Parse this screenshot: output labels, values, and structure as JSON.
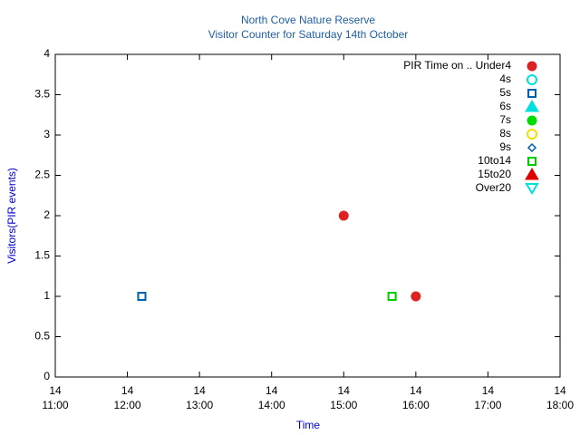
{
  "chart_data": {
    "type": "scatter",
    "title": "North Cove Nature Reserve",
    "subtitle": "Visitor Counter for Saturday 14th October",
    "x_label": "Time",
    "y_label": "Visitors(PIR events)",
    "xlim": [
      11,
      18
    ],
    "xticks": [
      {
        "value": 11,
        "label": [
          "14",
          "11:00"
        ]
      },
      {
        "value": 12,
        "label": [
          "14",
          "12:00"
        ]
      },
      {
        "value": 13,
        "label": [
          "14",
          "13:00"
        ]
      },
      {
        "value": 14,
        "label": [
          "14",
          "14:00"
        ]
      },
      {
        "value": 15,
        "label": [
          "14",
          "15:00"
        ]
      },
      {
        "value": 16,
        "label": [
          "14",
          "16:00"
        ]
      },
      {
        "value": 17,
        "label": [
          "14",
          "17:00"
        ]
      },
      {
        "value": 18,
        "label": [
          "14",
          "18:00"
        ]
      }
    ],
    "ylim": [
      0,
      4
    ],
    "yticks": [
      0,
      0.5,
      1,
      1.5,
      2,
      2.5,
      3,
      3.5,
      4
    ],
    "legend": "top-right",
    "series": [
      {
        "name": "PIR Time on .. Under4",
        "color": "#dd2222",
        "marker": "circle-filled",
        "x": [
          15,
          16
        ],
        "values": [
          2,
          1
        ]
      },
      {
        "name": "4s",
        "color": "#00e0e0",
        "marker": "circle-open",
        "x": [],
        "values": []
      },
      {
        "name": "5s",
        "color": "#0060ad",
        "marker": "square-open",
        "x": [
          12.2
        ],
        "values": [
          1
        ]
      },
      {
        "name": "6s",
        "color": "#00e0e0",
        "marker": "triangle-filled",
        "x": [],
        "values": []
      },
      {
        "name": "7s",
        "color": "#00dd00",
        "marker": "circle-filled",
        "x": [],
        "values": []
      },
      {
        "name": "8s",
        "color": "#f0e000",
        "marker": "circle-open",
        "x": [],
        "values": []
      },
      {
        "name": "9s",
        "color": "#0060ad",
        "marker": "diamond-open",
        "x": [],
        "values": []
      },
      {
        "name": "10to14",
        "color": "#00cc00",
        "marker": "square-open",
        "x": [
          15.67
        ],
        "values": [
          1
        ]
      },
      {
        "name": "15to20",
        "color": "#dd0000",
        "marker": "triangle-filled",
        "x": [],
        "values": []
      },
      {
        "name": "Over20",
        "color": "#00e0e0",
        "marker": "triangle-down-open",
        "x": [],
        "values": []
      }
    ]
  }
}
